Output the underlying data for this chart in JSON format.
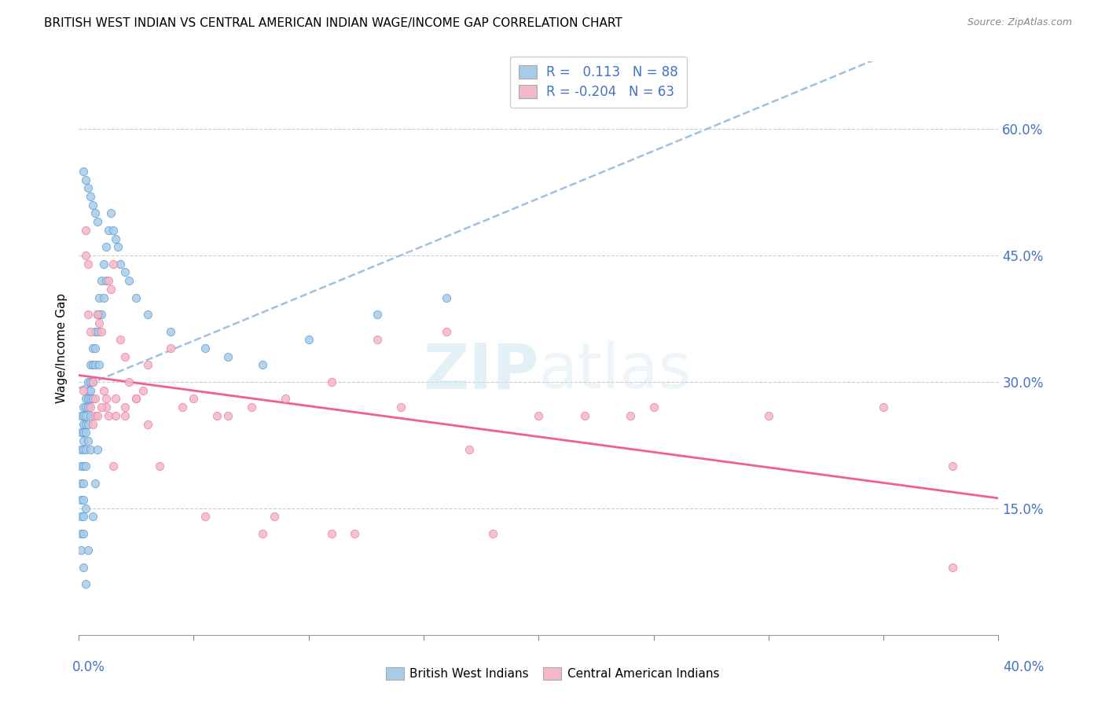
{
  "title": "BRITISH WEST INDIAN VS CENTRAL AMERICAN INDIAN WAGE/INCOME GAP CORRELATION CHART",
  "source": "Source: ZipAtlas.com",
  "ylabel": "Wage/Income Gap",
  "yticks_right": [
    0.15,
    0.3,
    0.45,
    0.6
  ],
  "ytick_labels_right": [
    "15.0%",
    "30.0%",
    "45.0%",
    "60.0%"
  ],
  "xlim": [
    0.0,
    0.4
  ],
  "ylim": [
    0.0,
    0.68
  ],
  "legend1_label": "R =   0.113   N = 88",
  "legend2_label": "R = -0.204   N = 63",
  "blue_color": "#a8cce8",
  "blue_edge": "#5b9bd5",
  "pink_color": "#f4b8c8",
  "pink_edge": "#e87aa0",
  "blue_line_color": "#a0c0e0",
  "pink_line_color": "#f06090",
  "watermark_color": "#cde4f0",
  "blue_scatter_x": [
    0.001,
    0.001,
    0.001,
    0.001,
    0.001,
    0.001,
    0.001,
    0.001,
    0.001,
    0.002,
    0.002,
    0.002,
    0.002,
    0.002,
    0.002,
    0.002,
    0.002,
    0.002,
    0.002,
    0.002,
    0.002,
    0.003,
    0.003,
    0.003,
    0.003,
    0.003,
    0.003,
    0.003,
    0.003,
    0.003,
    0.004,
    0.004,
    0.004,
    0.004,
    0.004,
    0.004,
    0.004,
    0.005,
    0.005,
    0.005,
    0.005,
    0.005,
    0.005,
    0.006,
    0.006,
    0.006,
    0.006,
    0.006,
    0.007,
    0.007,
    0.007,
    0.007,
    0.008,
    0.008,
    0.008,
    0.009,
    0.009,
    0.009,
    0.01,
    0.01,
    0.011,
    0.011,
    0.012,
    0.012,
    0.013,
    0.014,
    0.015,
    0.016,
    0.017,
    0.018,
    0.02,
    0.022,
    0.025,
    0.03,
    0.04,
    0.055,
    0.065,
    0.08,
    0.1,
    0.13,
    0.16,
    0.002,
    0.003,
    0.004,
    0.005,
    0.006,
    0.007,
    0.008
  ],
  "blue_scatter_y": [
    0.26,
    0.24,
    0.22,
    0.2,
    0.18,
    0.16,
    0.14,
    0.12,
    0.1,
    0.27,
    0.26,
    0.25,
    0.24,
    0.23,
    0.22,
    0.2,
    0.18,
    0.16,
    0.14,
    0.12,
    0.08,
    0.28,
    0.27,
    0.26,
    0.25,
    0.24,
    0.22,
    0.2,
    0.15,
    0.06,
    0.3,
    0.29,
    0.28,
    0.27,
    0.25,
    0.23,
    0.1,
    0.32,
    0.3,
    0.29,
    0.28,
    0.26,
    0.22,
    0.34,
    0.32,
    0.3,
    0.28,
    0.14,
    0.36,
    0.34,
    0.32,
    0.18,
    0.38,
    0.36,
    0.22,
    0.4,
    0.38,
    0.32,
    0.42,
    0.38,
    0.44,
    0.4,
    0.46,
    0.42,
    0.48,
    0.5,
    0.48,
    0.47,
    0.46,
    0.44,
    0.43,
    0.42,
    0.4,
    0.38,
    0.36,
    0.34,
    0.33,
    0.32,
    0.35,
    0.38,
    0.4,
    0.55,
    0.54,
    0.53,
    0.52,
    0.51,
    0.5,
    0.49
  ],
  "pink_scatter_x": [
    0.002,
    0.003,
    0.004,
    0.005,
    0.006,
    0.007,
    0.008,
    0.009,
    0.01,
    0.011,
    0.012,
    0.013,
    0.014,
    0.015,
    0.016,
    0.018,
    0.02,
    0.022,
    0.025,
    0.028,
    0.003,
    0.005,
    0.007,
    0.01,
    0.013,
    0.016,
    0.02,
    0.025,
    0.03,
    0.04,
    0.05,
    0.06,
    0.075,
    0.09,
    0.11,
    0.13,
    0.16,
    0.2,
    0.25,
    0.3,
    0.35,
    0.38,
    0.004,
    0.008,
    0.012,
    0.02,
    0.03,
    0.045,
    0.065,
    0.085,
    0.11,
    0.14,
    0.18,
    0.24,
    0.006,
    0.015,
    0.035,
    0.055,
    0.08,
    0.12,
    0.17,
    0.22,
    0.38
  ],
  "pink_scatter_y": [
    0.29,
    0.45,
    0.44,
    0.27,
    0.3,
    0.26,
    0.38,
    0.37,
    0.36,
    0.29,
    0.27,
    0.42,
    0.41,
    0.44,
    0.28,
    0.35,
    0.33,
    0.3,
    0.28,
    0.29,
    0.48,
    0.36,
    0.28,
    0.27,
    0.26,
    0.26,
    0.27,
    0.28,
    0.32,
    0.34,
    0.28,
    0.26,
    0.27,
    0.28,
    0.3,
    0.35,
    0.36,
    0.26,
    0.27,
    0.26,
    0.27,
    0.2,
    0.38,
    0.26,
    0.28,
    0.26,
    0.25,
    0.27,
    0.26,
    0.14,
    0.12,
    0.27,
    0.12,
    0.26,
    0.25,
    0.2,
    0.2,
    0.14,
    0.12,
    0.12,
    0.22,
    0.26,
    0.08
  ]
}
